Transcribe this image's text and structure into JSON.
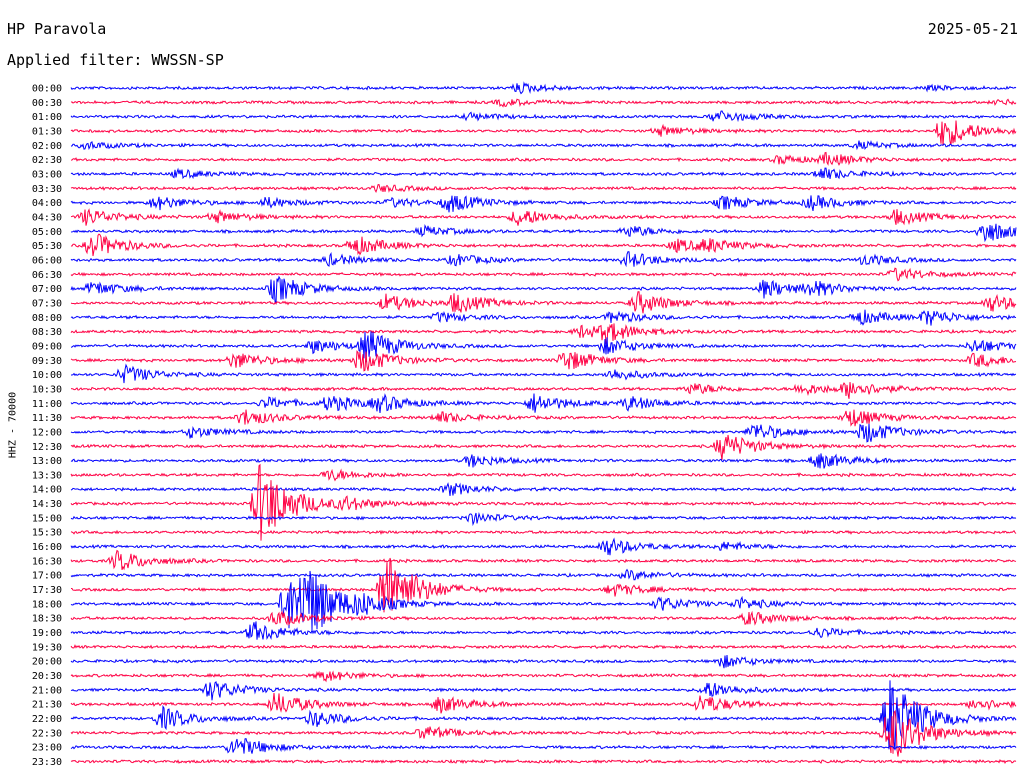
{
  "header": {
    "station": "HP Paravola",
    "date": "2025-05-21",
    "filter": "Applied filter: WWSSN-SP"
  },
  "chart_data": {
    "type": "line",
    "title": "HP Paravola",
    "subtitle": "Applied filter: WWSSN-SP",
    "date": "2025-05-21",
    "ylabel": "HHZ - 70000",
    "rows": [
      "00:00",
      "00:30",
      "01:00",
      "01:30",
      "02:00",
      "02:30",
      "03:00",
      "03:30",
      "04:00",
      "04:30",
      "05:00",
      "05:30",
      "06:00",
      "06:30",
      "07:00",
      "07:30",
      "08:00",
      "08:30",
      "09:00",
      "09:30",
      "10:00",
      "10:30",
      "11:00",
      "11:30",
      "12:00",
      "12:30",
      "13:00",
      "13:30",
      "14:00",
      "14:30",
      "15:00",
      "15:30",
      "16:00",
      "16:30",
      "17:00",
      "17:30",
      "18:00",
      "18:30",
      "19:00",
      "19:30",
      "20:00",
      "20:30",
      "21:00",
      "21:30",
      "22:00",
      "22:30",
      "23:00",
      "23:30"
    ],
    "x_minutes": [
      0,
      30
    ],
    "grid": false,
    "colors": {
      "even": "#0000ff",
      "odd": "#ff0044"
    },
    "events": [
      {
        "row": 0,
        "minute": 14.0,
        "amp": 0.35
      },
      {
        "row": 0,
        "minute": 30.5,
        "amp": 0.3
      },
      {
        "row": 0,
        "minute": 27.0,
        "amp": 0.15
      },
      {
        "row": 1,
        "minute": 13.5,
        "amp": 0.25
      },
      {
        "row": 1,
        "minute": 29.3,
        "amp": 0.15
      },
      {
        "row": 2,
        "minute": 12.5,
        "amp": 0.25
      },
      {
        "row": 2,
        "minute": 20.3,
        "amp": 0.45
      },
      {
        "row": 3,
        "minute": 18.5,
        "amp": 0.35
      },
      {
        "row": 3,
        "minute": 27.5,
        "amp": 1.2
      },
      {
        "row": 3,
        "minute": 30.0,
        "amp": 0.4
      },
      {
        "row": 4,
        "minute": 0.3,
        "amp": 0.25
      },
      {
        "row": 4,
        "minute": 24.8,
        "amp": 0.25
      },
      {
        "row": 5,
        "minute": 22.3,
        "amp": 0.3
      },
      {
        "row": 5,
        "minute": 23.8,
        "amp": 0.4
      },
      {
        "row": 5,
        "minute": 30.3,
        "amp": 0.35
      },
      {
        "row": 6,
        "minute": 3.2,
        "amp": 0.3
      },
      {
        "row": 6,
        "minute": 23.6,
        "amp": 0.45
      },
      {
        "row": 7,
        "minute": 9.6,
        "amp": 0.25
      },
      {
        "row": 7,
        "minute": 30.8,
        "amp": 0.4
      },
      {
        "row": 8,
        "minute": 2.5,
        "amp": 0.5
      },
      {
        "row": 8,
        "minute": 6.0,
        "amp": 0.35
      },
      {
        "row": 8,
        "minute": 10.0,
        "amp": 0.3
      },
      {
        "row": 8,
        "minute": 11.8,
        "amp": 0.65
      },
      {
        "row": 8,
        "minute": 20.5,
        "amp": 0.5
      },
      {
        "row": 8,
        "minute": 23.3,
        "amp": 0.5
      },
      {
        "row": 8,
        "minute": 30.5,
        "amp": 0.5
      },
      {
        "row": 9,
        "minute": 0.3,
        "amp": 0.6
      },
      {
        "row": 9,
        "minute": 4.4,
        "amp": 0.4
      },
      {
        "row": 9,
        "minute": 14.0,
        "amp": 0.65
      },
      {
        "row": 9,
        "minute": 26.0,
        "amp": 0.55
      },
      {
        "row": 9,
        "minute": 30.6,
        "amp": 0.5
      },
      {
        "row": 10,
        "minute": 11.0,
        "amp": 0.35
      },
      {
        "row": 10,
        "minute": 17.5,
        "amp": 0.4
      },
      {
        "row": 10,
        "minute": 28.8,
        "amp": 0.85
      },
      {
        "row": 10,
        "minute": 30.7,
        "amp": 0.9
      },
      {
        "row": 11,
        "minute": 0.5,
        "amp": 0.9
      },
      {
        "row": 11,
        "minute": 8.8,
        "amp": 0.7
      },
      {
        "row": 11,
        "minute": 19.0,
        "amp": 0.45
      },
      {
        "row": 11,
        "minute": 20.0,
        "amp": 0.4
      },
      {
        "row": 12,
        "minute": 8.0,
        "amp": 0.4
      },
      {
        "row": 12,
        "minute": 12.0,
        "amp": 0.4
      },
      {
        "row": 12,
        "minute": 17.5,
        "amp": 0.55
      },
      {
        "row": 12,
        "minute": 25.0,
        "amp": 0.4
      },
      {
        "row": 13,
        "minute": 26.0,
        "amp": 0.45
      },
      {
        "row": 13,
        "minute": 30.0,
        "amp": 0.65
      },
      {
        "row": 14,
        "minute": 0.5,
        "amp": 0.5
      },
      {
        "row": 14,
        "minute": 6.3,
        "amp": 1.0
      },
      {
        "row": 14,
        "minute": 21.8,
        "amp": 0.65
      },
      {
        "row": 14,
        "minute": 23.3,
        "amp": 0.5
      },
      {
        "row": 15,
        "minute": 9.8,
        "amp": 0.6
      },
      {
        "row": 15,
        "minute": 12.0,
        "amp": 0.7
      },
      {
        "row": 15,
        "minute": 17.8,
        "amp": 0.8
      },
      {
        "row": 15,
        "minute": 29.0,
        "amp": 0.6
      },
      {
        "row": 16,
        "minute": 11.5,
        "amp": 0.35
      },
      {
        "row": 16,
        "minute": 17.0,
        "amp": 0.45
      },
      {
        "row": 16,
        "minute": 24.8,
        "amp": 0.55
      },
      {
        "row": 16,
        "minute": 27.0,
        "amp": 0.55
      },
      {
        "row": 17,
        "minute": 16.0,
        "amp": 0.45
      },
      {
        "row": 17,
        "minute": 16.8,
        "amp": 0.6
      },
      {
        "row": 18,
        "minute": 7.5,
        "amp": 0.5
      },
      {
        "row": 18,
        "minute": 9.2,
        "amp": 1.1
      },
      {
        "row": 18,
        "minute": 16.8,
        "amp": 0.6
      },
      {
        "row": 18,
        "minute": 28.5,
        "amp": 0.5
      },
      {
        "row": 19,
        "minute": 5.0,
        "amp": 0.6
      },
      {
        "row": 19,
        "minute": 9.0,
        "amp": 0.9
      },
      {
        "row": 19,
        "minute": 15.5,
        "amp": 0.8
      },
      {
        "row": 19,
        "minute": 28.5,
        "amp": 0.5
      },
      {
        "row": 20,
        "minute": 1.5,
        "amp": 0.65
      },
      {
        "row": 20,
        "minute": 17.0,
        "amp": 0.4
      },
      {
        "row": 20,
        "minute": 30.5,
        "amp": 0.7
      },
      {
        "row": 21,
        "minute": 19.5,
        "amp": 0.4
      },
      {
        "row": 21,
        "minute": 23.0,
        "amp": 0.4
      },
      {
        "row": 21,
        "minute": 24.5,
        "amp": 0.6
      },
      {
        "row": 22,
        "minute": 6.0,
        "amp": 0.4
      },
      {
        "row": 22,
        "minute": 8.0,
        "amp": 0.55
      },
      {
        "row": 22,
        "minute": 9.6,
        "amp": 0.55
      },
      {
        "row": 22,
        "minute": 14.5,
        "amp": 0.7
      },
      {
        "row": 22,
        "minute": 17.5,
        "amp": 0.5
      },
      {
        "row": 23,
        "minute": 5.3,
        "amp": 0.6
      },
      {
        "row": 23,
        "minute": 11.5,
        "amp": 0.4
      },
      {
        "row": 23,
        "minute": 24.5,
        "amp": 0.7
      },
      {
        "row": 24,
        "minute": 3.6,
        "amp": 0.4
      },
      {
        "row": 24,
        "minute": 21.5,
        "amp": 0.65
      },
      {
        "row": 24,
        "minute": 25.0,
        "amp": 0.8
      },
      {
        "row": 25,
        "minute": 20.5,
        "amp": 1.0
      },
      {
        "row": 26,
        "minute": 12.5,
        "amp": 0.45
      },
      {
        "row": 26,
        "minute": 23.5,
        "amp": 0.6
      },
      {
        "row": 27,
        "minute": 8.0,
        "amp": 0.4
      },
      {
        "row": 28,
        "minute": 11.8,
        "amp": 0.45
      },
      {
        "row": 29,
        "minute": 5.8,
        "amp": 3.0
      },
      {
        "row": 29,
        "minute": 8.5,
        "amp": 0.4
      },
      {
        "row": 30,
        "minute": 12.5,
        "amp": 0.4
      },
      {
        "row": 32,
        "minute": 16.8,
        "amp": 0.65
      },
      {
        "row": 32,
        "minute": 20.5,
        "amp": 0.3
      },
      {
        "row": 33,
        "minute": 1.3,
        "amp": 0.75
      },
      {
        "row": 34,
        "minute": 17.5,
        "amp": 0.35
      },
      {
        "row": 35,
        "minute": 9.8,
        "amp": 2.8
      },
      {
        "row": 35,
        "minute": 17.0,
        "amp": 0.45
      },
      {
        "row": 36,
        "minute": 6.7,
        "amp": 2.3
      },
      {
        "row": 36,
        "minute": 7.3,
        "amp": 1.8
      },
      {
        "row": 36,
        "minute": 9.0,
        "amp": 0.5
      },
      {
        "row": 36,
        "minute": 18.5,
        "amp": 0.5
      },
      {
        "row": 36,
        "minute": 21.0,
        "amp": 0.4
      },
      {
        "row": 37,
        "minute": 6.3,
        "amp": 0.55
      },
      {
        "row": 37,
        "minute": 21.3,
        "amp": 0.5
      },
      {
        "row": 38,
        "minute": 5.6,
        "amp": 0.75
      },
      {
        "row": 38,
        "minute": 23.5,
        "amp": 0.35
      },
      {
        "row": 40,
        "minute": 20.5,
        "amp": 0.45
      },
      {
        "row": 41,
        "minute": 7.8,
        "amp": 0.4
      },
      {
        "row": 42,
        "minute": 4.2,
        "amp": 0.75
      },
      {
        "row": 42,
        "minute": 20.0,
        "amp": 0.6
      },
      {
        "row": 43,
        "minute": 6.3,
        "amp": 0.85
      },
      {
        "row": 43,
        "minute": 11.5,
        "amp": 0.6
      },
      {
        "row": 43,
        "minute": 19.8,
        "amp": 0.7
      },
      {
        "row": 43,
        "minute": 28.5,
        "amp": 0.45
      },
      {
        "row": 44,
        "minute": 2.7,
        "amp": 0.8
      },
      {
        "row": 44,
        "minute": 7.5,
        "amp": 0.6
      },
      {
        "row": 44,
        "minute": 25.8,
        "amp": 3.0
      },
      {
        "row": 45,
        "minute": 11.0,
        "amp": 0.5
      },
      {
        "row": 45,
        "minute": 25.8,
        "amp": 2.2
      },
      {
        "row": 46,
        "minute": 5.0,
        "amp": 0.8
      }
    ]
  }
}
